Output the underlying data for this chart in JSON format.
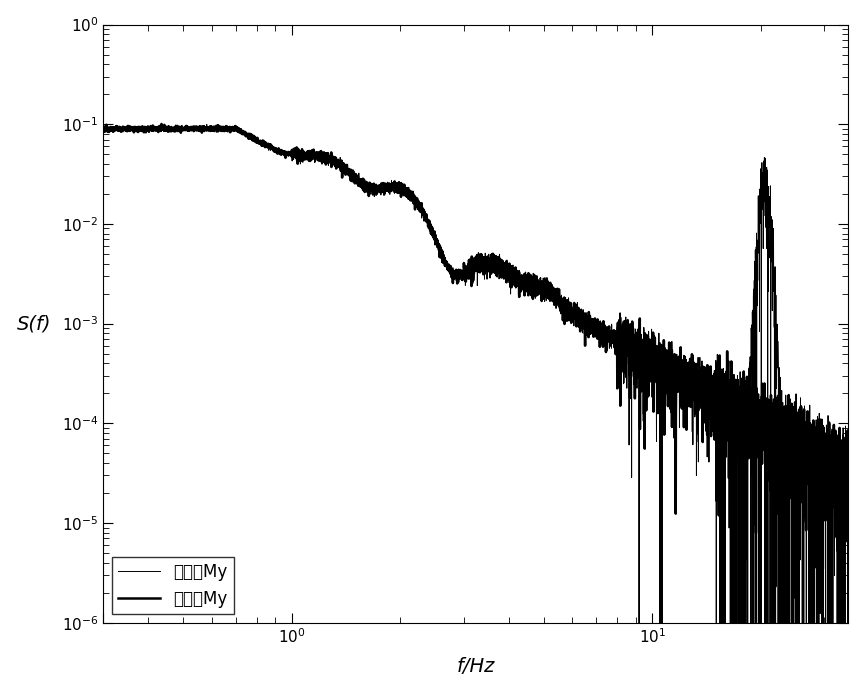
{
  "title": "",
  "xlabel": "f/Hz",
  "ylabel": "S(f)",
  "xlim": [
    0.3,
    35
  ],
  "ylim": [
    1e-06,
    1.0
  ],
  "background_color": "#ffffff",
  "line_color": "#000000",
  "legend_labels": [
    "修正前My",
    "修正后My"
  ],
  "thin_linewidth": 0.7,
  "thick_linewidth": 1.8,
  "figsize": [
    8.65,
    6.93
  ],
  "dpi": 100
}
